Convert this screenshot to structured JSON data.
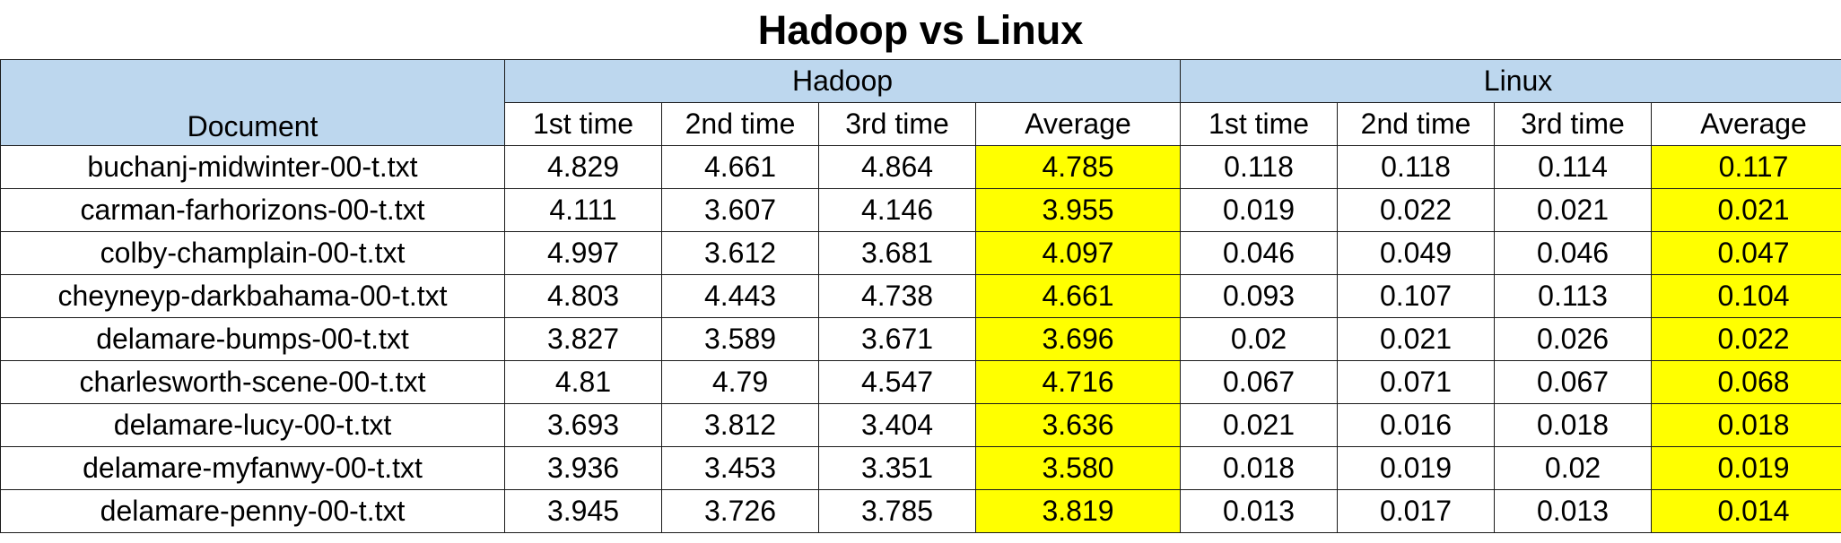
{
  "title": "Hadoop vs Linux",
  "headers": {
    "document": "Document",
    "groups": [
      "Hadoop",
      "Linux"
    ],
    "sub": [
      "1st time",
      "2nd time",
      "3rd time",
      "Average"
    ]
  },
  "colors": {
    "header_bg": "#bdd7ee",
    "average_highlight": "#ffff00"
  },
  "rows": [
    {
      "doc": "buchanj-midwinter-00-t.txt",
      "hadoop": [
        "4.829",
        "4.661",
        "4.864",
        "4.785"
      ],
      "linux": [
        "0.118",
        "0.118",
        "0.114",
        "0.117"
      ]
    },
    {
      "doc": "carman-farhorizons-00-t.txt",
      "hadoop": [
        "4.111",
        "3.607",
        "4.146",
        "3.955"
      ],
      "linux": [
        "0.019",
        "0.022",
        "0.021",
        "0.021"
      ]
    },
    {
      "doc": "colby-champlain-00-t.txt",
      "hadoop": [
        "4.997",
        "3.612",
        "3.681",
        "4.097"
      ],
      "linux": [
        "0.046",
        "0.049",
        "0.046",
        "0.047"
      ]
    },
    {
      "doc": "cheyneyp-darkbahama-00-t.txt",
      "hadoop": [
        "4.803",
        "4.443",
        "4.738",
        "4.661"
      ],
      "linux": [
        "0.093",
        "0.107",
        "0.113",
        "0.104"
      ]
    },
    {
      "doc": "delamare-bumps-00-t.txt",
      "hadoop": [
        "3.827",
        "3.589",
        "3.671",
        "3.696"
      ],
      "linux": [
        "0.02",
        "0.021",
        "0.026",
        "0.022"
      ]
    },
    {
      "doc": "charlesworth-scene-00-t.txt",
      "hadoop": [
        "4.81",
        "4.79",
        "4.547",
        "4.716"
      ],
      "linux": [
        "0.067",
        "0.071",
        "0.067",
        "0.068"
      ]
    },
    {
      "doc": "delamare-lucy-00-t.txt",
      "hadoop": [
        "3.693",
        "3.812",
        "3.404",
        "3.636"
      ],
      "linux": [
        "0.021",
        "0.016",
        "0.018",
        "0.018"
      ]
    },
    {
      "doc": "delamare-myfanwy-00-t.txt",
      "hadoop": [
        "3.936",
        "3.453",
        "3.351",
        "3.580"
      ],
      "linux": [
        "0.018",
        "0.019",
        "0.02",
        "0.019"
      ]
    },
    {
      "doc": "delamare-penny-00-t.txt",
      "hadoop": [
        "3.945",
        "3.726",
        "3.785",
        "3.819"
      ],
      "linux": [
        "0.013",
        "0.017",
        "0.013",
        "0.014"
      ]
    }
  ]
}
